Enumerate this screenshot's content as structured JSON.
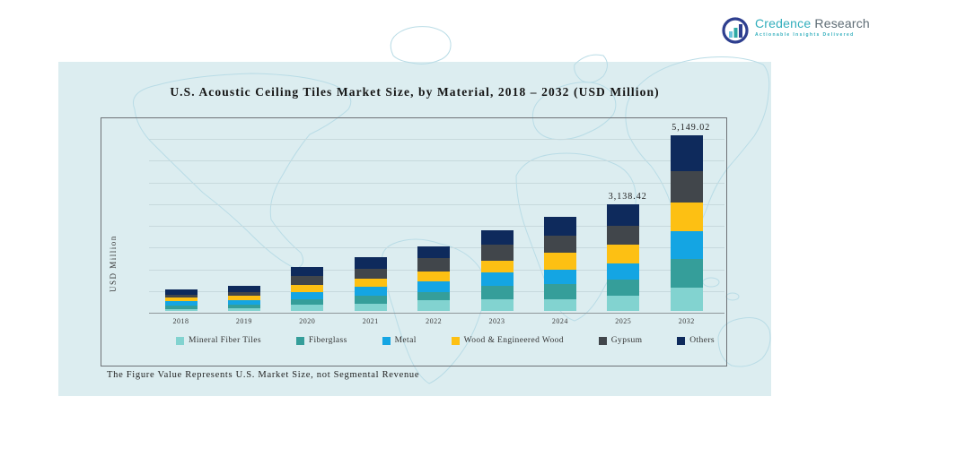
{
  "logo": {
    "name_primary": "Credence",
    "name_secondary": "Research",
    "tagline": "Actionable Insights Delivered",
    "colors": {
      "primary": "#31aebc",
      "secondary": "#5d6b74",
      "icon_ring": "#2e3f8f"
    }
  },
  "card": {
    "background": "#dcedf0",
    "map_line_color": "#b9dce6"
  },
  "chart_data": {
    "type": "bar",
    "stacked": true,
    "title": "U.S. Acoustic Ceiling Tiles Market Size, by Material, 2018 – 2032 (USD Million)",
    "ylabel": "USD Million",
    "xlabel": "",
    "categories": [
      "2018",
      "2019",
      "2020",
      "2021",
      "2022",
      "2023",
      "2024",
      "2025",
      "2032"
    ],
    "series": [
      {
        "name": "Mineral Fiber Tiles",
        "color": "#82d3d0",
        "values": [
          63,
          72,
          176,
          212,
          317,
          351,
          339,
          444,
          697
        ]
      },
      {
        "name": "Fiberglass",
        "color": "#359e9a",
        "values": [
          91,
          106,
          176,
          233,
          248,
          374,
          457,
          472,
          819
        ]
      },
      {
        "name": "Metal",
        "color": "#14a5e3",
        "values": [
          133,
          148,
          212,
          260,
          317,
          408,
          423,
          480,
          819
        ]
      },
      {
        "name": "Wood & Engineered Wood",
        "color": "#fdc013",
        "values": [
          106,
          127,
          212,
          254,
          286,
          353,
          495,
          565,
          850
        ]
      },
      {
        "name": "Gypsum",
        "color": "#41464b",
        "values": [
          78,
          91,
          247,
          275,
          387,
          459,
          493,
          544,
          911
        ]
      },
      {
        "name": "Others",
        "color": "#0e2a5c",
        "values": [
          169,
          197,
          269,
          349,
          349,
          423,
          550,
          633.42,
          1053.02
        ]
      }
    ],
    "data_labels": {
      "2025": "3,138.42",
      "2032": "5,149.02"
    },
    "totals_labeled": {
      "2025": 3138.42,
      "2032": 5149.02
    },
    "legend_position": "bottom",
    "grid": "horizontal",
    "gridline_count": 8
  },
  "footnote": "The Figure Value Represents U.S. Market Size, not Segmental Revenue"
}
